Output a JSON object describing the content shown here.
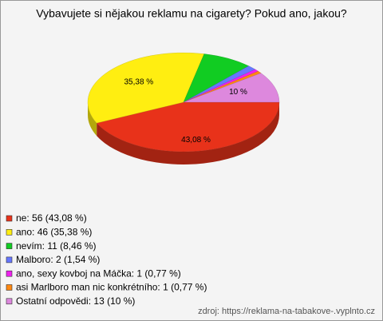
{
  "chart_data": {
    "type": "pie",
    "title": "Vybavujete si nějakou reklamu na cigarety? Pokud ano, jakou?",
    "categories": [
      "ne: 56 (43,08 %)",
      "ano: 46 (35,38 %)",
      "nevím: 11 (8,46 %)",
      "Malboro: 2 (1,54 %)",
      "ano, sexy kovboj na Máčka: 1 (0,77 %)",
      "asi Marlboro man nic konkrétního: 1 (0,77 %)",
      "Ostatní odpovědi: 13 (10 %)"
    ],
    "values": [
      43.08,
      35.38,
      8.46,
      1.54,
      0.77,
      0.77,
      10
    ],
    "value_labels": [
      "43,08 %",
      "35,38 %",
      null,
      null,
      null,
      null,
      "10 %"
    ],
    "colors": [
      "#e8321a",
      "#ffee11",
      "#11cc22",
      "#6677ff",
      "#ee22ee",
      "#ff8811",
      "#dd88dd"
    ],
    "source": "zdroj: https://reklama-na-tabakove-.vyplnto.cz"
  }
}
